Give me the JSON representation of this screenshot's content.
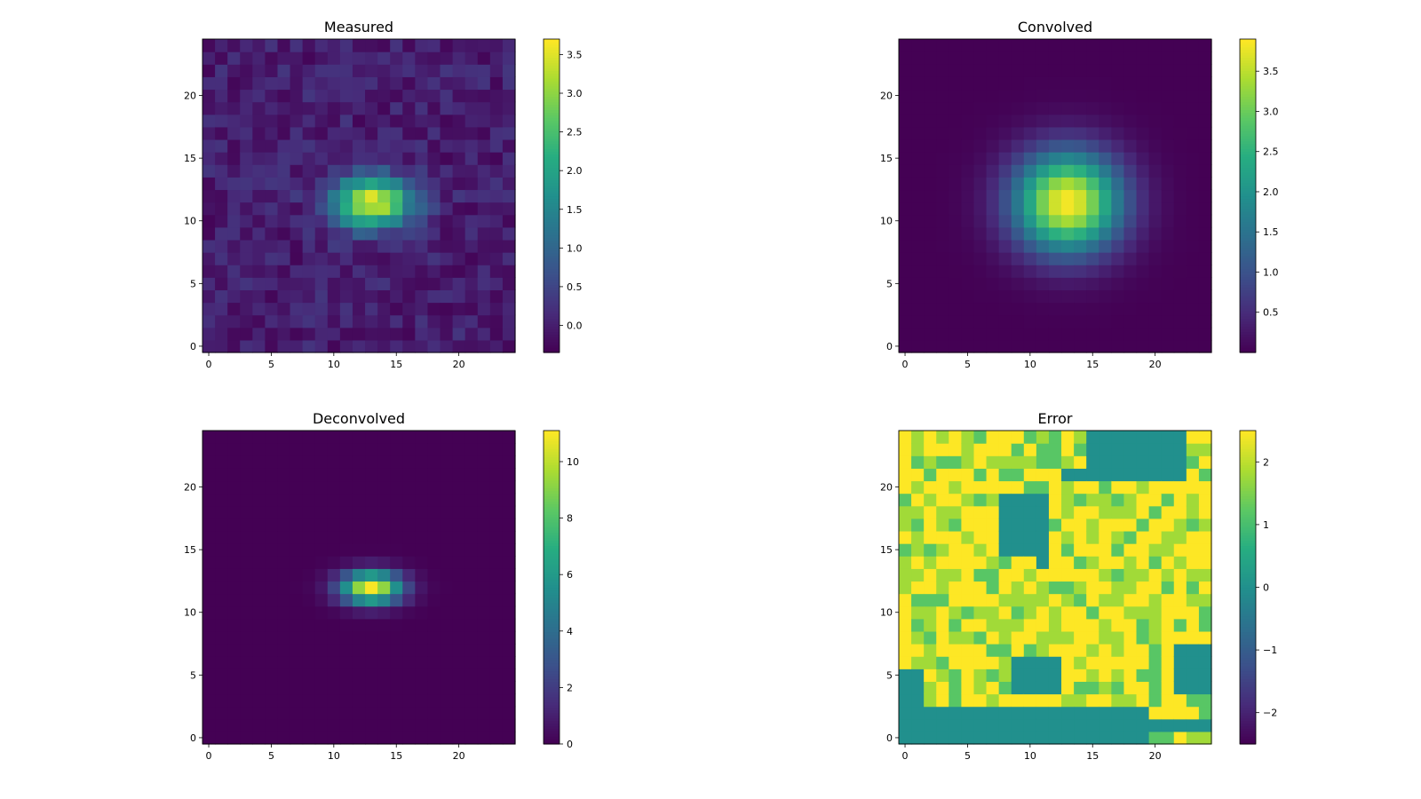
{
  "figure": {
    "background": "#ffffff"
  },
  "colormap": "viridis",
  "chart_data": [
    {
      "type": "heatmap",
      "title": "Measured",
      "grid_size": 25,
      "xlim": [
        -0.5,
        24.5
      ],
      "ylim": [
        -0.5,
        24.5
      ],
      "xticks": [
        0,
        5,
        10,
        15,
        20
      ],
      "yticks": [
        0,
        5,
        10,
        15,
        20
      ],
      "colorbar": {
        "min": -0.35,
        "max": 3.7,
        "ticks": [
          0.0,
          0.5,
          1.0,
          1.5,
          2.0,
          2.5,
          3.0,
          3.5
        ],
        "tick_labels": [
          "0.0",
          "0.5",
          "1.0",
          "1.5",
          "2.0",
          "2.5",
          "3.0",
          "3.5"
        ]
      },
      "model": {
        "kind": "gaussian",
        "center": [
          13,
          11.5
        ],
        "sigma": [
          2.2,
          1.4
        ],
        "amplitude": 3.6,
        "noise": 0.3
      }
    },
    {
      "type": "heatmap",
      "title": "Convolved",
      "grid_size": 25,
      "xlim": [
        -0.5,
        24.5
      ],
      "ylim": [
        -0.5,
        24.5
      ],
      "xticks": [
        0,
        5,
        10,
        15,
        20
      ],
      "yticks": [
        0,
        5,
        10,
        15,
        20
      ],
      "colorbar": {
        "min": 0.0,
        "max": 3.9,
        "ticks": [
          0.5,
          1.0,
          1.5,
          2.0,
          2.5,
          3.0,
          3.5
        ],
        "tick_labels": [
          "0.5",
          "1.0",
          "1.5",
          "2.0",
          "2.5",
          "3.0",
          "3.5"
        ]
      },
      "model": {
        "kind": "gaussian",
        "center": [
          13,
          11.5
        ],
        "sigma": [
          3.0,
          2.8
        ],
        "amplitude": 3.9,
        "noise": 0.0
      }
    },
    {
      "type": "heatmap",
      "title": "Deconvolved",
      "grid_size": 25,
      "xlim": [
        -0.5,
        24.5
      ],
      "ylim": [
        -0.5,
        24.5
      ],
      "xticks": [
        0,
        5,
        10,
        15,
        20
      ],
      "yticks": [
        0,
        5,
        10,
        15,
        20
      ],
      "colorbar": {
        "min": 0,
        "max": 11.1,
        "ticks": [
          0,
          2,
          4,
          6,
          8,
          10
        ],
        "tick_labels": [
          "0",
          "2",
          "4",
          "6",
          "8",
          "10"
        ]
      },
      "model": {
        "kind": "gaussian",
        "center": [
          13,
          12
        ],
        "sigma": [
          1.7,
          0.9
        ],
        "amplitude": 11.0,
        "noise": 0.0
      }
    },
    {
      "type": "heatmap",
      "title": "Error",
      "grid_size": 25,
      "xlim": [
        -0.5,
        24.5
      ],
      "ylim": [
        -0.5,
        24.5
      ],
      "xticks": [
        0,
        5,
        10,
        15,
        20
      ],
      "yticks": [
        0,
        5,
        10,
        15,
        20
      ],
      "colorbar": {
        "min": -2.5,
        "max": 2.5,
        "ticks": [
          -2,
          -1,
          0,
          1,
          2
        ],
        "tick_labels": [
          "−2",
          "−1",
          "0",
          "1",
          "2"
        ]
      },
      "model": {
        "kind": "error",
        "zero_regions": [
          {
            "x": [
              15,
              22
            ],
            "y": [
              22,
              24
            ]
          },
          {
            "x": [
              13,
              22
            ],
            "y": [
              21,
              21
            ]
          },
          {
            "x": [
              8,
              11
            ],
            "y": [
              15,
              19
            ]
          },
          {
            "x": [
              11,
              11
            ],
            "y": [
              14,
              14
            ]
          },
          {
            "x": [
              9,
              12
            ],
            "y": [
              4,
              6
            ]
          },
          {
            "x": [
              22,
              24
            ],
            "y": [
              4,
              7
            ]
          },
          {
            "x": [
              0,
              1
            ],
            "y": [
              0,
              5
            ]
          },
          {
            "x": [
              2,
              19
            ],
            "y": [
              0,
              2
            ]
          },
          {
            "x": [
              20,
              24
            ],
            "y": [
              1,
              1
            ]
          }
        ]
      }
    }
  ]
}
